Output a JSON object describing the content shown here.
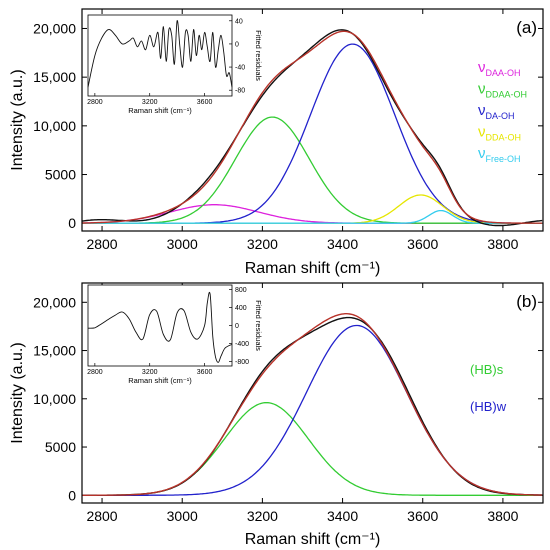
{
  "chart_data": [
    {
      "type": "line",
      "panel_label": "(a)",
      "xlabel": "Raman shift (cm⁻¹)",
      "ylabel": "Intensity (a.u.)",
      "xlim": [
        2750,
        3900
      ],
      "ylim": [
        -800,
        22000
      ],
      "x_ticks": [
        2800,
        3000,
        3200,
        3400,
        3600,
        3800
      ],
      "x_tick_labels": [
        "2800",
        "3000",
        "3200",
        "3400",
        "3600",
        "3800"
      ],
      "y_ticks": [
        0,
        5000,
        10000,
        15000,
        20000
      ],
      "y_tick_labels": [
        "0",
        "5000",
        "10,000",
        "15,000",
        "20,000"
      ],
      "legend": [
        {
          "symbol": "ν",
          "sub": "DAA-OH",
          "color": "#dd22dd"
        },
        {
          "symbol": "ν",
          "sub": "DDAA-OH",
          "color": "#33cc33"
        },
        {
          "symbol": "ν",
          "sub": "DA-OH",
          "color": "#2222cc"
        },
        {
          "symbol": "ν",
          "sub": "DDA-OH",
          "color": "#e6e600"
        },
        {
          "symbol": "ν",
          "sub": "Free-OH",
          "color": "#33ccee"
        }
      ],
      "components": [
        {
          "label": "νDAA-OH",
          "color": "#dd22dd",
          "center": 3080,
          "amplitude": 1900,
          "sigma": 110
        },
        {
          "label": "νDDAA-OH",
          "color": "#33cc33",
          "center": 3225,
          "amplitude": 10900,
          "sigma": 92
        },
        {
          "label": "νDA-OH",
          "color": "#2222cc",
          "center": 3425,
          "amplitude": 18400,
          "sigma": 105
        },
        {
          "label": "νDDA-OH",
          "color": "#e6e600",
          "center": 3595,
          "amplitude": 2900,
          "sigma": 55
        },
        {
          "label": "νFree-OH",
          "color": "#33ccee",
          "center": 3645,
          "amplitude": 1300,
          "sigma": 30
        }
      ],
      "inset": {
        "xlabel": "Raman shift (cm⁻¹)",
        "ylabel": "Fitted residuals",
        "xlim": [
          2750,
          3800
        ],
        "ylim": [
          -90,
          50
        ],
        "x_ticks": [
          2800,
          3200,
          3600
        ],
        "y_ticks": [
          40,
          0,
          -40,
          -80
        ],
        "residual_x": [
          2750,
          2800,
          2850,
          2900,
          2950,
          3000,
          3050,
          3080,
          3110,
          3140,
          3170,
          3200,
          3230,
          3260,
          3280,
          3300,
          3320,
          3340,
          3360,
          3380,
          3400,
          3420,
          3440,
          3460,
          3480,
          3500,
          3520,
          3540,
          3560,
          3580,
          3600,
          3620,
          3640,
          3660,
          3680,
          3700,
          3720,
          3740,
          3760,
          3780,
          3800
        ],
        "residual_y": [
          -75,
          -20,
          10,
          25,
          15,
          0,
          5,
          10,
          -5,
          5,
          -10,
          15,
          -5,
          20,
          -25,
          30,
          -30,
          25,
          15,
          -35,
          40,
          -5,
          -40,
          20,
          15,
          -30,
          25,
          -20,
          15,
          -10,
          20,
          -5,
          -30,
          20,
          -40,
          -10,
          15,
          -15,
          -55,
          -50,
          -75
        ]
      }
    },
    {
      "type": "line",
      "panel_label": "(b)",
      "xlabel": "Raman shift (cm⁻¹)",
      "ylabel": "Intensity (a.u.)",
      "xlim": [
        2750,
        3900
      ],
      "ylim": [
        -800,
        22000
      ],
      "x_ticks": [
        2800,
        3000,
        3200,
        3400,
        3600,
        3800
      ],
      "x_tick_labels": [
        "2800",
        "3000",
        "3200",
        "3400",
        "3600",
        "3800"
      ],
      "y_ticks": [
        0,
        5000,
        10000,
        15000,
        20000
      ],
      "y_tick_labels": [
        "0",
        "5000",
        "10,000",
        "15,000",
        "20,000"
      ],
      "legend": [
        {
          "symbol": "(HB)s",
          "sub": "",
          "color": "#33cc33"
        },
        {
          "symbol": "(HB)w",
          "sub": "",
          "color": "#2222cc"
        }
      ],
      "components": [
        {
          "label": "(HB)s",
          "color": "#33cc33",
          "center": 3210,
          "amplitude": 9600,
          "sigma": 105
        },
        {
          "label": "(HB)w",
          "color": "#2222cc",
          "center": 3435,
          "amplitude": 17600,
          "sigma": 125
        }
      ],
      "inset": {
        "xlabel": "Raman shift (cm⁻¹)",
        "ylabel": "Fitted residuals",
        "xlim": [
          2750,
          3800
        ],
        "ylim": [
          -900,
          900
        ],
        "x_ticks": [
          2800,
          3200,
          3600
        ],
        "y_ticks": [
          800,
          400,
          0,
          -400,
          -800
        ],
        "residual_x": [
          2750,
          2800,
          2850,
          2900,
          2950,
          3000,
          3050,
          3100,
          3150,
          3200,
          3250,
          3300,
          3350,
          3400,
          3450,
          3500,
          3550,
          3600,
          3620,
          3640,
          3660,
          3680,
          3700,
          3720,
          3750,
          3800
        ],
        "residual_y": [
          -60,
          -50,
          40,
          140,
          230,
          300,
          150,
          -150,
          -300,
          240,
          320,
          -200,
          -320,
          280,
          330,
          -150,
          -300,
          0,
          500,
          700,
          -250,
          -700,
          -820,
          -680,
          -500,
          -420
        ]
      }
    }
  ]
}
